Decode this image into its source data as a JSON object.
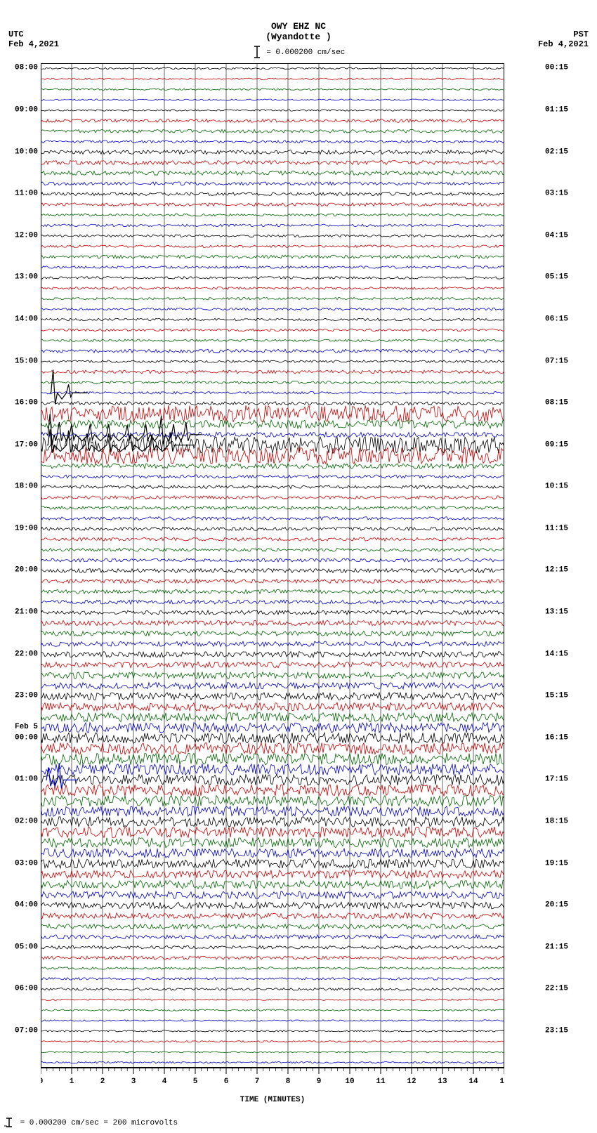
{
  "header": {
    "station_line": "OWY EHZ NC",
    "location_line": "(Wyandotte )",
    "scale_text": "= 0.000200 cm/sec"
  },
  "timezones": {
    "left_tz": "UTC",
    "left_date": "Feb 4,2021",
    "right_tz": "PST",
    "right_date": "Feb 4,2021"
  },
  "plot": {
    "background_color": "#ffffff",
    "grid_color": "#000000",
    "n_traces": 96,
    "minutes_span": 15,
    "trace_colors_cycle": [
      "#000000",
      "#cc0000",
      "#006600",
      "#0000cc"
    ],
    "left_hour_labels": [
      {
        "idx": 0,
        "text": "08:00"
      },
      {
        "idx": 4,
        "text": "09:00"
      },
      {
        "idx": 8,
        "text": "10:00"
      },
      {
        "idx": 12,
        "text": "11:00"
      },
      {
        "idx": 16,
        "text": "12:00"
      },
      {
        "idx": 20,
        "text": "13:00"
      },
      {
        "idx": 24,
        "text": "14:00"
      },
      {
        "idx": 28,
        "text": "15:00"
      },
      {
        "idx": 32,
        "text": "16:00"
      },
      {
        "idx": 36,
        "text": "17:00"
      },
      {
        "idx": 40,
        "text": "18:00"
      },
      {
        "idx": 44,
        "text": "19:00"
      },
      {
        "idx": 48,
        "text": "20:00"
      },
      {
        "idx": 52,
        "text": "21:00"
      },
      {
        "idx": 56,
        "text": "22:00"
      },
      {
        "idx": 60,
        "text": "23:00"
      },
      {
        "idx": 64,
        "text": "00:00"
      },
      {
        "idx": 68,
        "text": "01:00"
      },
      {
        "idx": 72,
        "text": "02:00"
      },
      {
        "idx": 76,
        "text": "03:00"
      },
      {
        "idx": 80,
        "text": "04:00"
      },
      {
        "idx": 84,
        "text": "05:00"
      },
      {
        "idx": 88,
        "text": "06:00"
      },
      {
        "idx": 92,
        "text": "07:00"
      }
    ],
    "left_date_break": {
      "idx": 63,
      "text": "Feb 5"
    },
    "right_hour_labels": [
      {
        "idx": 0,
        "text": "00:15"
      },
      {
        "idx": 4,
        "text": "01:15"
      },
      {
        "idx": 8,
        "text": "02:15"
      },
      {
        "idx": 12,
        "text": "03:15"
      },
      {
        "idx": 16,
        "text": "04:15"
      },
      {
        "idx": 20,
        "text": "05:15"
      },
      {
        "idx": 24,
        "text": "06:15"
      },
      {
        "idx": 28,
        "text": "07:15"
      },
      {
        "idx": 32,
        "text": "08:15"
      },
      {
        "idx": 36,
        "text": "09:15"
      },
      {
        "idx": 40,
        "text": "10:15"
      },
      {
        "idx": 44,
        "text": "11:15"
      },
      {
        "idx": 48,
        "text": "12:15"
      },
      {
        "idx": 52,
        "text": "13:15"
      },
      {
        "idx": 56,
        "text": "14:15"
      },
      {
        "idx": 60,
        "text": "15:15"
      },
      {
        "idx": 64,
        "text": "16:15"
      },
      {
        "idx": 68,
        "text": "17:15"
      },
      {
        "idx": 72,
        "text": "18:15"
      },
      {
        "idx": 76,
        "text": "19:15"
      },
      {
        "idx": 80,
        "text": "20:15"
      },
      {
        "idx": 84,
        "text": "21:15"
      },
      {
        "idx": 88,
        "text": "22:15"
      },
      {
        "idx": 92,
        "text": "23:15"
      }
    ],
    "noise_levels": [
      0.002,
      0.002,
      0.002,
      0.002,
      0.002,
      0.004,
      0.004,
      0.003,
      0.005,
      0.005,
      0.005,
      0.004,
      0.004,
      0.004,
      0.003,
      0.003,
      0.003,
      0.003,
      0.004,
      0.003,
      0.003,
      0.003,
      0.003,
      0.003,
      0.003,
      0.003,
      0.003,
      0.004,
      0.003,
      0.004,
      0.003,
      0.003,
      0.004,
      0.02,
      0.01,
      0.006,
      0.02,
      0.02,
      0.006,
      0.004,
      0.004,
      0.004,
      0.004,
      0.004,
      0.004,
      0.004,
      0.004,
      0.004,
      0.005,
      0.005,
      0.005,
      0.005,
      0.005,
      0.006,
      0.006,
      0.006,
      0.007,
      0.007,
      0.008,
      0.008,
      0.009,
      0.01,
      0.011,
      0.012,
      0.013,
      0.014,
      0.014,
      0.013,
      0.013,
      0.014,
      0.013,
      0.012,
      0.012,
      0.013,
      0.012,
      0.011,
      0.011,
      0.01,
      0.01,
      0.009,
      0.008,
      0.007,
      0.006,
      0.005,
      0.004,
      0.004,
      0.003,
      0.003,
      0.003,
      0.002,
      0.002,
      0.002,
      0.002,
      0.002,
      0.002,
      0.002
    ],
    "events": [
      {
        "trace": 31,
        "start_min": 0.3,
        "peaks": [
          {
            "m": 0.4,
            "a": 2.2
          },
          {
            "m": 0.9,
            "a": 0.8
          }
        ],
        "decay_min": 1.5
      },
      {
        "trace": 35,
        "start_min": 0.2,
        "peaks": [
          {
            "m": 0.3,
            "a": 2.0
          },
          {
            "m": 0.6,
            "a": 1.2
          },
          {
            "m": 1.0,
            "a": 1.0
          },
          {
            "m": 1.6,
            "a": 1.0
          },
          {
            "m": 2.2,
            "a": 1.0
          },
          {
            "m": 2.8,
            "a": 0.9
          },
          {
            "m": 3.4,
            "a": 1.0
          },
          {
            "m": 3.9,
            "a": 1.8
          },
          {
            "m": 4.3,
            "a": 1.0
          },
          {
            "m": 4.7,
            "a": 1.2
          }
        ],
        "decay_min": 5.2
      },
      {
        "trace": 36,
        "start_min": 0.2,
        "peaks": [
          {
            "m": 0.3,
            "a": 1.5
          },
          {
            "m": 0.9,
            "a": 1.4
          },
          {
            "m": 1.5,
            "a": 1.1
          },
          {
            "m": 2.2,
            "a": 1.1
          },
          {
            "m": 2.9,
            "a": 1.0
          },
          {
            "m": 3.6,
            "a": 1.0
          },
          {
            "m": 4.2,
            "a": 1.2
          }
        ],
        "decay_min": 5.0
      },
      {
        "trace": 68,
        "start_min": 0.2,
        "peaks": [
          {
            "m": 0.25,
            "a": 1.2
          },
          {
            "m": 0.6,
            "a": 1.6
          }
        ],
        "decay_min": 1.2,
        "color": "#0000cc"
      }
    ]
  },
  "xaxis": {
    "label": "TIME (MINUTES)",
    "major_ticks": [
      0,
      1,
      2,
      3,
      4,
      5,
      6,
      7,
      8,
      9,
      10,
      11,
      12,
      13,
      14,
      15
    ],
    "minor_per_major": 4
  },
  "footer": {
    "text": "= 0.000200 cm/sec =    200 microvolts"
  }
}
